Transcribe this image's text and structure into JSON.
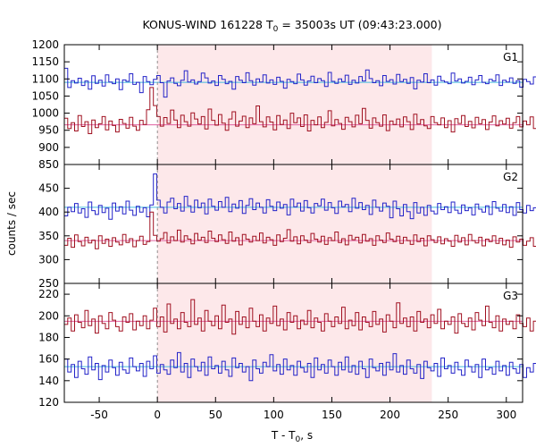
{
  "chart_data": {
    "type": "line",
    "title": "KONUS-WIND 161228 T0 = 35003s UT (09:43:23.000)",
    "title_parts": {
      "prefix": "KONUS-WIND 161228 T",
      "subscript": "0",
      "suffix": " = 35003s UT (09:43:23.000)"
    },
    "xlabel": "T - T0, s",
    "xlabel_parts": {
      "prefix": "T - T",
      "subscript": "0",
      "suffix": ", s"
    },
    "ylabel": "counts / sec",
    "xlim": [
      -80,
      314
    ],
    "x_ticks": [
      -50,
      0,
      50,
      100,
      150,
      200,
      250,
      300
    ],
    "grid": false,
    "highlight_interval": {
      "x": [
        0,
        236
      ],
      "color": "#fde8ea"
    },
    "vertical_marker": {
      "x": 0,
      "style": "dashed"
    },
    "colors": {
      "blue": "#2323c8",
      "red": "#a01020",
      "blue_fit": "#44bbdd",
      "red_fit": "#e060a0",
      "pulse_blue": "#66ccee",
      "pulse_red": "#ff66cc"
    },
    "panels": [
      {
        "label": "G1",
        "ylim": [
          850,
          1200
        ],
        "y_ticks": [
          850,
          900,
          950,
          1000,
          1050,
          1100,
          1150,
          1200
        ],
        "series": [
          {
            "color": "blue",
            "fit_color": "blue_fit",
            "x_start": -80,
            "dt": 2.944,
            "background": 1090,
            "values": [
              1131,
              1075,
              1095,
              1088,
              1102,
              1081,
              1094,
              1070,
              1109,
              1087,
              1096,
              1079,
              1112,
              1091,
              1086,
              1100,
              1069,
              1097,
              1093,
              1115,
              1084,
              1090,
              1060,
              1107,
              1092,
              1083,
              1099,
              1110,
              1089,
              1047,
              1094,
              1103,
              1087,
              1080,
              1096,
              1124,
              1091,
              1097,
              1085,
              1092,
              1117,
              1103,
              1088,
              1094,
              1081,
              1110,
              1099,
              1086,
              1093,
              1070,
              1107,
              1096,
              1089,
              1118,
              1095,
              1082,
              1100,
              1091,
              1112,
              1088,
              1097,
              1084,
              1105,
              1093,
              1073,
              1099,
              1092,
              1086,
              1114,
              1097,
              1082,
              1094,
              1108,
              1089,
              1101,
              1095,
              1078,
              1119,
              1093,
              1087,
              1100,
              1092,
              1111,
              1084,
              1096,
              1088,
              1107,
              1094,
              1126,
              1101,
              1089,
              1095,
              1080,
              1110,
              1093,
              1098,
              1085,
              1113,
              1092,
              1099,
              1087,
              1104,
              1071,
              1096,
              1091,
              1115,
              1089,
              1097,
              1082,
              1108,
              1095,
              1091,
              1086,
              1117,
              1094,
              1100,
              1088,
              1093,
              1105,
              1083,
              1097,
              1110,
              1090,
              1086,
              1099,
              1094,
              1112,
              1081,
              1096,
              1091,
              1103,
              1087,
              1095,
              1076,
              1099,
              1092,
              1085,
              1106
            ]
          },
          {
            "color": "red",
            "fit_color": "red_fit",
            "x_start": -80,
            "dt": 2.944,
            "background": 966,
            "values": [
              985,
              955,
              972,
              948,
              993,
              961,
              975,
              940,
              980,
              958,
              969,
              990,
              951,
              977,
              964,
              945,
              982,
              970,
              956,
              988,
              962,
              950,
              979,
              967,
              1010,
              1075,
              1022,
              990,
              962,
              987,
              970,
              1009,
              980,
              958,
              994,
              975,
              962,
              1001,
              983,
              968,
              990,
              954,
              1012,
              979,
              965,
              996,
              971,
              950,
              983,
              1004,
              962,
              977,
              991,
              958,
              986,
              969,
              1021,
              975,
              960,
              989,
              974,
              951,
              993,
              967,
              980,
              955,
              1000,
              972,
              986,
              961,
              995,
              948,
              979,
              966,
              989,
              958,
              973,
              1007,
              963,
              981,
              970,
              953,
              988,
              975,
              960,
              994,
              969,
              1014,
              979,
              956,
              986,
              972,
              962,
              995,
              949,
              977,
              967,
              983,
              960,
              989,
              975,
              952,
              997,
              968,
              981,
              963,
              955,
              990,
              972,
              966,
              986,
              958,
              978,
              945,
              984,
              970,
              993,
              961,
              976,
              957,
              988,
              969,
              981,
              952,
              974,
              992,
              963,
              978,
              968,
              985,
              956,
              972,
              990,
              960,
              977,
              966,
              989,
              955,
              975
            ]
          }
        ]
      },
      {
        "label": "G2",
        "ylim": [
          250,
          500
        ],
        "y_ticks": [
          250,
          300,
          350,
          400,
          450
        ],
        "series": [
          {
            "color": "blue",
            "fit_color": "blue_fit",
            "x_start": -80,
            "dt": 2.944,
            "background": 410,
            "values": [
              392,
              410,
              401,
              418,
              398,
              407,
              389,
              421,
              403,
              395,
              414,
              399,
              408,
              385,
              419,
              402,
              411,
              396,
              423,
              404,
              393,
              412,
              400,
              409,
              390,
              415,
              480,
              425,
              410,
              398,
              421,
              429,
              407,
              418,
              402,
              433,
              413,
              400,
              425,
              409,
              419,
              396,
              427,
              412,
              404,
              422,
              410,
              431,
              401,
              417,
              408,
              424,
              397,
              414,
              428,
              405,
              419,
              410,
              398,
              426,
              412,
              403,
              421,
              408,
              416,
              394,
              427,
              411,
              419,
              402,
              424,
              409,
              398,
              418,
              413,
              427,
              404,
              420,
              409,
              397,
              423,
              411,
              416,
              401,
              429,
              408,
              420,
              405,
              414,
              395,
              425,
              410,
              402,
              419,
              412,
              388,
              423,
              407,
              392,
              416,
              401,
              386,
              420,
              398,
              410,
              393,
              414,
              402,
              396,
              418,
              405,
              411,
              399,
              421,
              404,
              397,
              415,
              403,
              409,
              394,
              417,
              406,
              400,
              413,
              395,
              422,
              408,
              402,
              416,
              399,
              411,
              393,
              420,
              405,
              398,
              414,
              403,
              409
            ]
          },
          {
            "color": "red",
            "fit_color": "red_fit",
            "x_start": -80,
            "dt": 2.944,
            "background": 340,
            "values": [
              330,
              345,
              326,
              352,
              338,
              329,
              347,
              335,
              341,
              323,
              350,
              334,
              343,
              328,
              346,
              337,
              331,
              353,
              336,
              344,
              327,
              340,
              349,
              332,
              338,
              400,
              351,
              339,
              344,
              357,
              335,
              348,
              340,
              362,
              337,
              350,
              343,
              333,
              355,
              341,
              347,
              336,
              360,
              345,
              338,
              352,
              342,
              334,
              358,
              339,
              346,
              331,
              353,
              343,
              337,
              349,
              340,
              356,
              335,
              347,
              342,
              330,
              352,
              338,
              345,
              363,
              339,
              348,
              333,
              350,
              341,
              336,
              355,
              343,
              337,
              349,
              332,
              346,
              340,
              358,
              336,
              344,
              331,
              351,
              342,
              347,
              335,
              353,
              339,
              344,
              330,
              350,
              341,
              336,
              356,
              343,
              338,
              349,
              334,
              347,
              340,
              332,
              352,
              338,
              345,
              329,
              350,
              342,
              336,
              348,
              333,
              344,
              339,
              328,
              351,
              337,
              346,
              331,
              353,
              340,
              335,
              347,
              329,
              343,
              338,
              350,
              334,
              345,
              331,
              341,
              326,
              348,
              337,
              343,
              330,
              339,
              346,
              328
            ]
          }
        ]
      },
      {
        "label": "G3",
        "ylim": [
          120,
          230
        ],
        "y_ticks": [
          120,
          140,
          160,
          180,
          200,
          220
        ],
        "series": [
          {
            "color": "red",
            "fit_color": "red_fit",
            "x_start": -80,
            "dt": 2.944,
            "background": 195,
            "values": [
              192,
              198,
              186,
              201,
              194,
              189,
              205,
              191,
              197,
              184,
              200,
              193,
              188,
              203,
              196,
              190,
              186,
              199,
              194,
              202,
              187,
              195,
              191,
              200,
              188,
              196,
              207,
              190,
              199,
              185,
              211,
              193,
              197,
              188,
              203,
              194,
              190,
              215,
              192,
              198,
              186,
              205,
              195,
              191,
              200,
              188,
              210,
              194,
              197,
              183,
              204,
              192,
              199,
              189,
              207,
              195,
              190,
              201,
              186,
              198,
              193,
              209,
              191,
              197,
              187,
              203,
              194,
              200,
              188,
              196,
              192,
              205,
              189,
              198,
              194,
              186,
              202,
              195,
              190,
              199,
              193,
              208,
              188,
              196,
              191,
              203,
              187,
              199,
              194,
              190,
              204,
              192,
              197,
              185,
              201,
              195,
              189,
              212,
              193,
              198,
              190,
              199,
              186,
              204,
              194,
              197,
              189,
              201,
              193,
              206,
              188,
              195,
              192,
              199,
              184,
              202,
              193,
              190,
              198,
              187,
              203,
              196,
              191,
              209,
              194,
              189,
              200,
              186,
              197,
              192,
              195,
              188,
              201,
              193,
              190,
              198,
              186,
              195
            ]
          },
          {
            "color": "blue",
            "fit_color": "blue_fit",
            "x_start": -80,
            "dt": 2.944,
            "background": 153,
            "values": [
              160,
              148,
              155,
              143,
              158,
              151,
              146,
              162,
              150,
              156,
              141,
              154,
              148,
              159,
              152,
              145,
              157,
              150,
              147,
              161,
              153,
              149,
              156,
              144,
              158,
              151,
              163,
              147,
              155,
              150,
              146,
              159,
              152,
              166,
              148,
              156,
              143,
              160,
              153,
              149,
              157,
              145,
              162,
              151,
              154,
              147,
              158,
              150,
              144,
              161,
              152,
              156,
              148,
              153,
              140,
              159,
              151,
              147,
              157,
              153,
              164,
              149,
              155,
              146,
              160,
              150,
              154,
              145,
              158,
              152,
              148,
              156,
              143,
              161,
              150,
              155,
              147,
              159,
              153,
              145,
              157,
              150,
              162,
              148,
              154,
              146,
              158,
              151,
              143,
              160,
              152,
              149,
              156,
              145,
              157,
              150,
              165,
              148,
              154,
              146,
              159,
              151,
              147,
              155,
              142,
              158,
              152,
              149,
              156,
              144,
              161,
              151,
              154,
              147,
              157,
              150,
              145,
              159,
              153,
              148,
              155,
              143,
              160,
              150,
              152,
              146,
              158,
              149,
              154,
              145,
              157,
              151,
              147,
              155,
              143,
              152,
              148,
              156
            ]
          }
        ]
      }
    ]
  }
}
